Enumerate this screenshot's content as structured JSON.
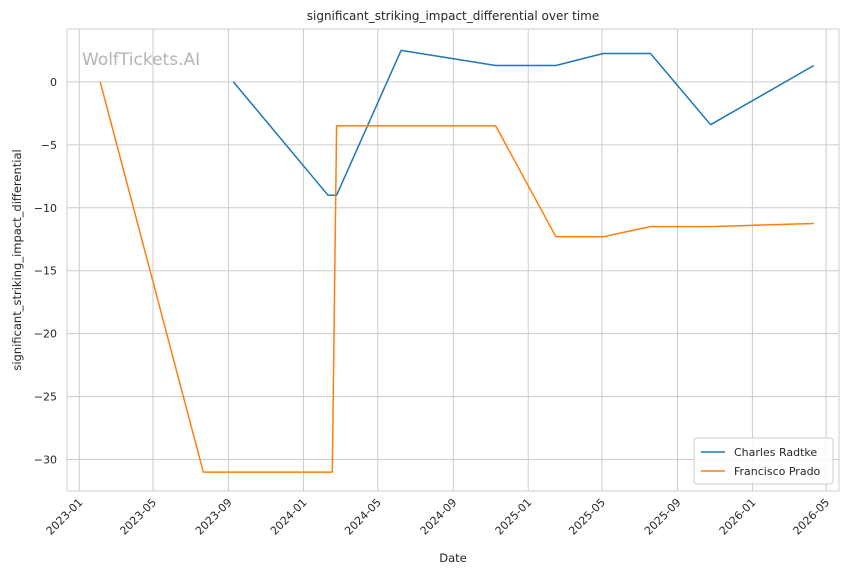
{
  "chart_data": {
    "type": "line",
    "title": "significant_striking_impact_differential over time",
    "xlabel": "Date",
    "ylabel": "significant_striking_impact_differential",
    "watermark": "WolfTickets.AI",
    "x_ticks": [
      "2023-01",
      "2023-05",
      "2023-09",
      "2024-01",
      "2024-05",
      "2024-09",
      "2025-01",
      "2025-05",
      "2025-09",
      "2026-01",
      "2026-05"
    ],
    "y_ticks": [
      0,
      -5,
      -10,
      -15,
      -20,
      -25,
      -30
    ],
    "y_tick_labels": [
      "0",
      "−5",
      "−10",
      "−15",
      "−20",
      "−25",
      "−30"
    ],
    "xlim": [
      "2022-12-12",
      "2026-05-22"
    ],
    "ylim": [
      -32.5,
      4.2
    ],
    "grid": true,
    "legend_position": "lower-right",
    "series": [
      {
        "name": "Charles Radtke",
        "color": "#1f77b4",
        "x": [
          "2023-09-09",
          "2024-02-10",
          "2024-02-24",
          "2024-06-08",
          "2024-11-09",
          "2025-02-15",
          "2025-05-03",
          "2025-07-19",
          "2025-10-25",
          "2026-04-11"
        ],
        "y": [
          0,
          -9,
          -9,
          2.5,
          1.3,
          1.3,
          2.25,
          2.25,
          -3.4,
          1.3
        ]
      },
      {
        "name": "Francisco Prado",
        "color": "#ff7f0e",
        "x": [
          "2023-02-04",
          "2023-07-22",
          "2024-02-17",
          "2024-02-24",
          "2024-11-09",
          "2025-02-15",
          "2025-05-03",
          "2025-07-19",
          "2025-10-25",
          "2026-04-11"
        ],
        "y": [
          0,
          -31,
          -31,
          -3.5,
          -3.5,
          -12.3,
          -12.3,
          -11.5,
          -11.5,
          -11.25
        ]
      }
    ]
  }
}
